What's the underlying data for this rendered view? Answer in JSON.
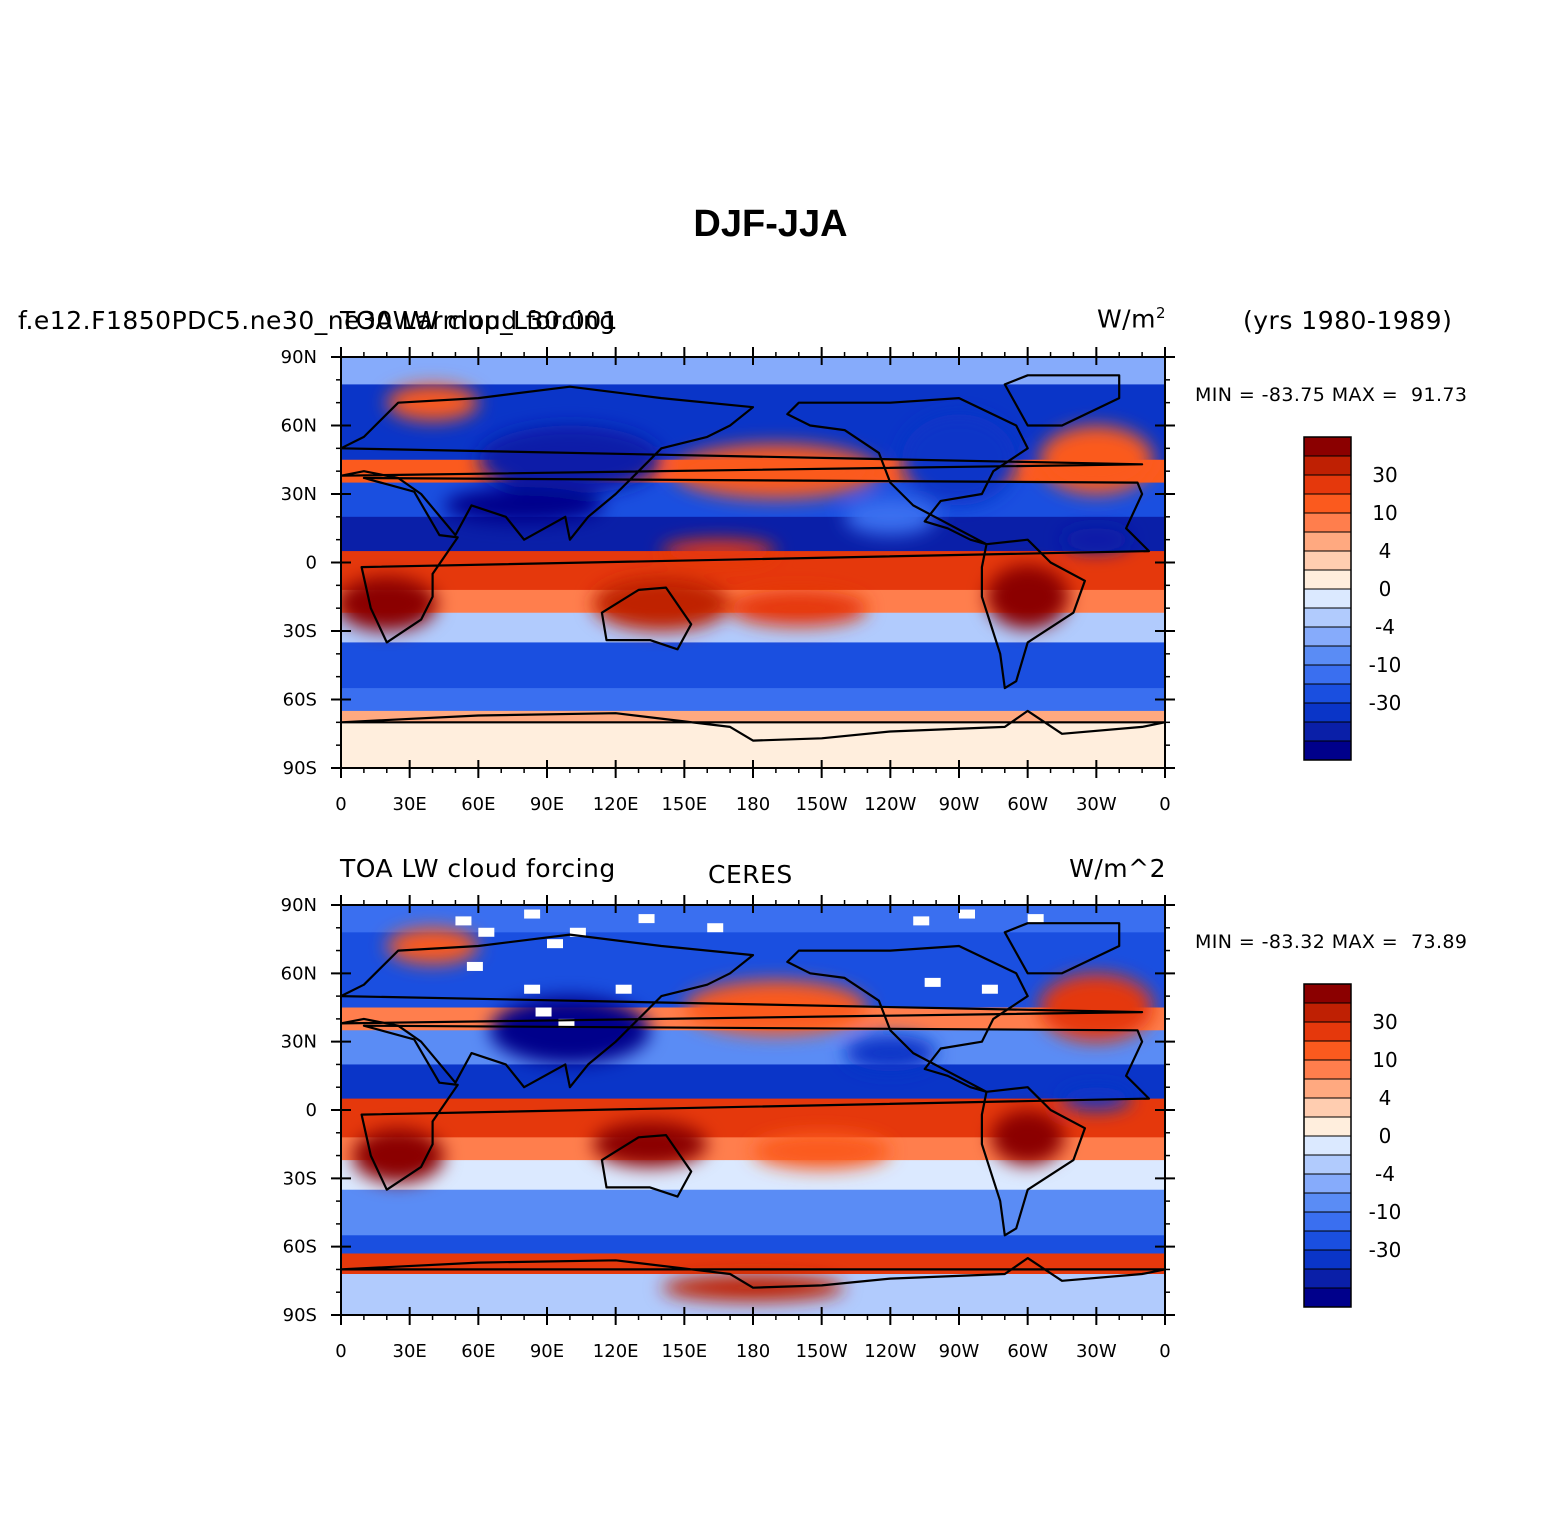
{
  "title": "DJF-JJA",
  "years": "(yrs 1980-1989)",
  "colorbar": {
    "colors": [
      "#00008b",
      "#0a1fa8",
      "#0a35c8",
      "#1a4fe0",
      "#3a6ff0",
      "#5a8cf5",
      "#86abfb",
      "#b1cbfd",
      "#dbe9ff",
      "#ffeedd",
      "#ffcdb0",
      "#ffa980",
      "#ff7e4d",
      "#fb5a1e",
      "#e5380c",
      "#bf2003",
      "#8b0000"
    ],
    "labels": [
      "-30",
      "-10",
      "-4",
      "0",
      "4",
      "10",
      "30"
    ]
  },
  "lat_labels": [
    "90N",
    "60N",
    "30N",
    "0",
    "30S",
    "60S",
    "90S"
  ],
  "lon_labels": [
    "0",
    "30E",
    "60E",
    "90E",
    "120E",
    "150E",
    "180",
    "150W",
    "120W",
    "90W",
    "60W",
    "30W",
    "0"
  ],
  "panels": [
    {
      "case_name": "f.e12.F1850PDC5.ne30_ne30Warmup_L30.001",
      "variable": "TOA LW cloud forcing",
      "source": "",
      "units_base": "W/m",
      "units_sup": "2",
      "min_label": "MIN = ",
      "min_value": "-83.75",
      "max_label": "MAX = ",
      "max_value": "91.73"
    },
    {
      "case_name": "",
      "variable": "TOA LW cloud forcing",
      "source": "CERES",
      "units_base": "W/m^2",
      "units_sup": "",
      "min_label": "MIN = ",
      "min_value": "-83.32",
      "max_label": "MAX = ",
      "max_value": "73.89"
    }
  ]
}
